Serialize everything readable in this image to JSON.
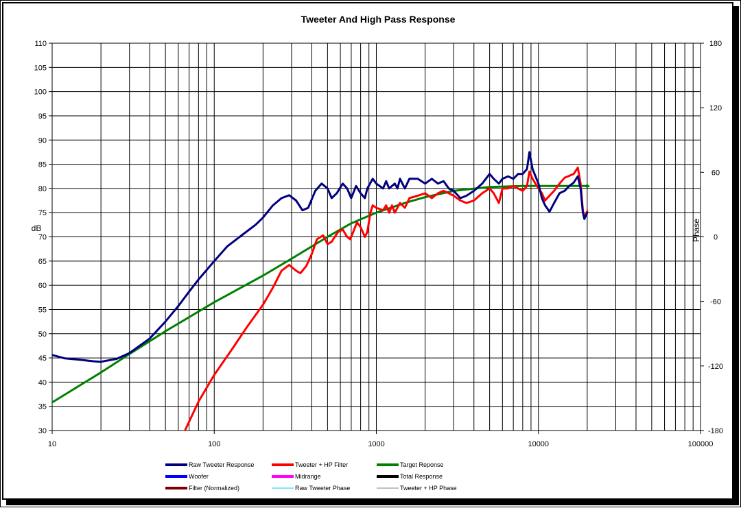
{
  "chart_data": {
    "type": "line",
    "title": "Tweeter  And High Pass Response",
    "xlabel": "",
    "ylabel": "dB",
    "y2label": "Phase",
    "xscale": "log",
    "xlim": [
      10,
      100000
    ],
    "ylim": [
      30,
      110
    ],
    "y2lim": [
      -180,
      180
    ],
    "grid": true,
    "legend_position": "bottom",
    "x_ticks": [
      "10",
      "100",
      "1000",
      "10000",
      "100000"
    ],
    "y_ticks": [
      "110",
      "105",
      "100",
      "95",
      "90",
      "85",
      "80",
      "75",
      "70",
      "65",
      "60",
      "55",
      "50",
      "45",
      "40",
      "35",
      "30"
    ],
    "y2_ticks": [
      "180",
      "120",
      "60",
      "0",
      "-60",
      "-120",
      "-180"
    ],
    "series": [
      {
        "name": "Raw Tweeter Response",
        "color": "#000080",
        "points": [
          [
            10,
            45.6
          ],
          [
            12,
            44.9
          ],
          [
            15,
            44.6
          ],
          [
            18,
            44.3
          ],
          [
            20,
            44.2
          ],
          [
            25,
            44.8
          ],
          [
            30,
            46
          ],
          [
            40,
            49
          ],
          [
            50,
            52.5
          ],
          [
            60,
            55.7
          ],
          [
            70,
            58.7
          ],
          [
            80,
            61.2
          ],
          [
            100,
            65
          ],
          [
            120,
            68
          ],
          [
            150,
            70.5
          ],
          [
            180,
            72.5
          ],
          [
            200,
            74
          ],
          [
            230,
            76.5
          ],
          [
            260,
            78
          ],
          [
            290,
            78.6
          ],
          [
            320,
            77.5
          ],
          [
            350,
            75.5
          ],
          [
            380,
            76
          ],
          [
            420,
            79.5
          ],
          [
            460,
            81
          ],
          [
            500,
            80
          ],
          [
            530,
            78
          ],
          [
            570,
            79
          ],
          [
            620,
            81
          ],
          [
            660,
            80
          ],
          [
            700,
            78
          ],
          [
            750,
            80.5
          ],
          [
            800,
            79
          ],
          [
            850,
            78
          ],
          [
            880,
            80
          ],
          [
            950,
            82
          ],
          [
            1000,
            81
          ],
          [
            1100,
            80
          ],
          [
            1150,
            81.5
          ],
          [
            1200,
            80
          ],
          [
            1300,
            81
          ],
          [
            1350,
            80
          ],
          [
            1400,
            82
          ],
          [
            1500,
            80
          ],
          [
            1600,
            82
          ],
          [
            1800,
            82
          ],
          [
            2000,
            81
          ],
          [
            2200,
            82
          ],
          [
            2400,
            81
          ],
          [
            2600,
            81.5
          ],
          [
            2800,
            80
          ],
          [
            3000,
            79.5
          ],
          [
            3300,
            78
          ],
          [
            3600,
            78.5
          ],
          [
            4000,
            79.5
          ],
          [
            4500,
            81
          ],
          [
            5000,
            83
          ],
          [
            5300,
            82
          ],
          [
            5700,
            81
          ],
          [
            6000,
            82
          ],
          [
            6500,
            82.5
          ],
          [
            7000,
            82
          ],
          [
            7500,
            83
          ],
          [
            8000,
            83
          ],
          [
            8500,
            84
          ],
          [
            8800,
            87.5
          ],
          [
            9200,
            84
          ],
          [
            10000,
            81
          ],
          [
            10500,
            78
          ],
          [
            11000,
            76.5
          ],
          [
            11700,
            75.2
          ],
          [
            12500,
            77
          ],
          [
            13500,
            79
          ],
          [
            14500,
            79.5
          ],
          [
            15500,
            80.5
          ],
          [
            16500,
            81.2
          ],
          [
            17500,
            82.5
          ],
          [
            18200,
            80
          ],
          [
            18800,
            75
          ],
          [
            19200,
            73.7
          ],
          [
            20000,
            75
          ]
        ]
      },
      {
        "name": "Tweeter + HP Filter",
        "color": "#ff0000",
        "points": [
          [
            66,
            30
          ],
          [
            80,
            36
          ],
          [
            100,
            41.5
          ],
          [
            130,
            47
          ],
          [
            160,
            51.5
          ],
          [
            200,
            56
          ],
          [
            230,
            59.5
          ],
          [
            260,
            63
          ],
          [
            290,
            64.2
          ],
          [
            320,
            63
          ],
          [
            340,
            62.5
          ],
          [
            370,
            64
          ],
          [
            400,
            66.5
          ],
          [
            430,
            69.5
          ],
          [
            470,
            70.3
          ],
          [
            500,
            68.5
          ],
          [
            530,
            69
          ],
          [
            580,
            71
          ],
          [
            620,
            71.5
          ],
          [
            660,
            70
          ],
          [
            690,
            69.5
          ],
          [
            720,
            71
          ],
          [
            760,
            73
          ],
          [
            800,
            72
          ],
          [
            850,
            70
          ],
          [
            880,
            71
          ],
          [
            920,
            75
          ],
          [
            950,
            76.5
          ],
          [
            1000,
            76
          ],
          [
            1100,
            75.5
          ],
          [
            1150,
            76.5
          ],
          [
            1200,
            75
          ],
          [
            1250,
            76.5
          ],
          [
            1300,
            75
          ],
          [
            1400,
            77
          ],
          [
            1500,
            76
          ],
          [
            1600,
            78
          ],
          [
            1800,
            78.5
          ],
          [
            2000,
            79
          ],
          [
            2200,
            78
          ],
          [
            2400,
            79
          ],
          [
            2600,
            79.5
          ],
          [
            2800,
            79
          ],
          [
            3000,
            78.5
          ],
          [
            3300,
            77.5
          ],
          [
            3600,
            77
          ],
          [
            4000,
            77.5
          ],
          [
            4500,
            79
          ],
          [
            5000,
            80
          ],
          [
            5300,
            79
          ],
          [
            5700,
            77
          ],
          [
            6000,
            80
          ],
          [
            6500,
            80
          ],
          [
            7000,
            80.5
          ],
          [
            7500,
            80
          ],
          [
            8000,
            79.5
          ],
          [
            8500,
            80.5
          ],
          [
            8800,
            83.5
          ],
          [
            9200,
            82
          ],
          [
            10000,
            80
          ],
          [
            10500,
            79
          ],
          [
            11000,
            77.5
          ],
          [
            11700,
            78.5
          ],
          [
            12500,
            79.5
          ],
          [
            13500,
            81
          ],
          [
            14500,
            82.2
          ],
          [
            15500,
            82.6
          ],
          [
            16500,
            83
          ],
          [
            17500,
            84.3
          ],
          [
            18200,
            81
          ],
          [
            18800,
            75.5
          ],
          [
            19200,
            74
          ],
          [
            20000,
            75.3
          ]
        ]
      },
      {
        "name": "Target Reponse",
        "color": "#008000",
        "points": [
          [
            10,
            35.8
          ],
          [
            20,
            42
          ],
          [
            30,
            45.8
          ],
          [
            50,
            50.5
          ],
          [
            100,
            56.5
          ],
          [
            200,
            62
          ],
          [
            300,
            65.5
          ],
          [
            500,
            70
          ],
          [
            700,
            72.8
          ],
          [
            1000,
            75
          ],
          [
            1500,
            77
          ],
          [
            2000,
            78.2
          ],
          [
            3000,
            79.5
          ],
          [
            5000,
            80.3
          ],
          [
            8000,
            80.5
          ],
          [
            20000,
            80.5
          ]
        ]
      },
      {
        "name": "Woofer",
        "color": "#0000ff",
        "points": []
      },
      {
        "name": "Midrange",
        "color": "#ff00ff",
        "points": []
      },
      {
        "name": "Total Response",
        "color": "#000000",
        "points": []
      },
      {
        "name": "Filter (Normalized)",
        "color": "#800000",
        "points": []
      },
      {
        "name": "Raw Tweeter Phase",
        "color": "#00ccff",
        "points": []
      },
      {
        "name": "Tweeter + HP Phase",
        "color": "#808080",
        "points": []
      }
    ]
  }
}
